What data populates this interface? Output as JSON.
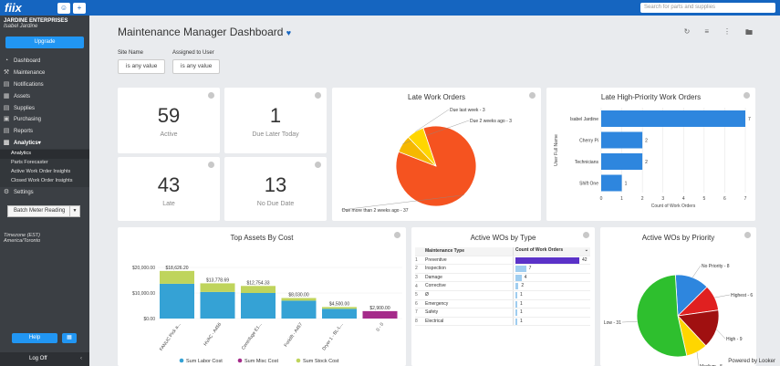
{
  "topbar": {
    "logo": "fiix",
    "search_placeholder": "Search for parts and supplies"
  },
  "sidebar": {
    "org": "JARDINE ENTERPRISES",
    "user": "Isabel Jardine",
    "upgrade": "Upgrade",
    "items": [
      {
        "label": "Dashboard",
        "icon": "dashboard-icon"
      },
      {
        "label": "Maintenance",
        "icon": "wrench-icon"
      },
      {
        "label": "Notifications",
        "icon": "chat-icon"
      },
      {
        "label": "Assets",
        "icon": "assets-icon"
      },
      {
        "label": "Supplies",
        "icon": "supplies-icon"
      },
      {
        "label": "Purchasing",
        "icon": "cart-icon"
      },
      {
        "label": "Reports",
        "icon": "reports-icon"
      },
      {
        "label": "Analytics",
        "icon": "analytics-icon"
      }
    ],
    "sub": [
      "Analytics",
      "Parts Forecaster",
      "Active Work Order Insights",
      "Closed Work Order Insights"
    ],
    "settings": "Settings",
    "batch": "Batch Meter Reading",
    "tz1": "Timezone (EST)",
    "tz2": "America/Toronto",
    "help": "Help",
    "logoff": "Log Off"
  },
  "dashboard": {
    "title": "Maintenance Manager Dashboard",
    "filters": [
      {
        "label": "Site Name",
        "value": "is any value"
      },
      {
        "label": "Assigned to User",
        "value": "is any value"
      }
    ],
    "kpis": [
      {
        "value": "59",
        "label": "Active"
      },
      {
        "value": "1",
        "label": "Due Later Today"
      },
      {
        "value": "43",
        "label": "Late"
      },
      {
        "value": "13",
        "label": "No Due Date"
      }
    ],
    "powered": "Powered by Looker"
  },
  "chart_data": [
    {
      "type": "pie",
      "title": "Late Work Orders",
      "slices": [
        {
          "label": "Due more than 2 weeks ago",
          "value": 37,
          "color": "#f55320"
        },
        {
          "label": "Due 2 weeks ago",
          "value": 3,
          "color": "#f5b800"
        },
        {
          "label": "Due last week",
          "value": 3,
          "color": "#ffd600"
        }
      ]
    },
    {
      "type": "bar",
      "title": "Late High-Priority Work Orders",
      "orientation": "horizontal",
      "categories": [
        "Isabel Jardine",
        "Cherry Pi",
        "Technicians",
        "Shift One"
      ],
      "values": [
        7,
        2,
        2,
        1
      ],
      "xlabel": "Count of Work Orders",
      "ylabel": "User Full Name",
      "xlim": [
        0,
        7
      ],
      "ticks": [
        "0",
        "1",
        "2",
        "3",
        "4",
        "5",
        "6",
        "7"
      ]
    },
    {
      "type": "bar",
      "title": "Top Assets By Cost",
      "stacked": true,
      "categories": [
        "FANUC Pick a...",
        "HVAC - A456",
        "Centrifuge E1...",
        "Forklift - A457",
        "Dryer 1 - BL-L...",
        "0 - 0"
      ],
      "totals": [
        "$18,626.20",
        "$13,778.69",
        "$12,754.33",
        "$8,030.00",
        "$4,500.00",
        "$2,900.00"
      ],
      "series": [
        {
          "name": "Sum Labor Cost",
          "color": "#35a2d5",
          "values": [
            13600,
            10400,
            10000,
            7000,
            3800,
            0
          ]
        },
        {
          "name": "Sum Misc Cost",
          "color": "#a52b8a",
          "values": [
            0,
            0,
            0,
            0,
            0,
            2900
          ]
        },
        {
          "name": "Sum Stock Cost",
          "color": "#bfd45c",
          "values": [
            5026,
            3379,
            2754,
            1030,
            700,
            0
          ]
        }
      ],
      "yticks": [
        "$20,000.00",
        "$10,000.00",
        "$0.00"
      ],
      "ylim": [
        0,
        20000
      ]
    },
    {
      "type": "table",
      "title": "Active WOs by Type",
      "columns": [
        "Maintenance Type",
        "Count of Work Orders"
      ],
      "rows": [
        [
          "Preventive",
          42
        ],
        [
          "Inspection",
          7
        ],
        [
          "Damage",
          4
        ],
        [
          "Corrective",
          2
        ],
        [
          "Ø",
          1
        ],
        [
          "Emergency",
          1
        ],
        [
          "Safety",
          1
        ],
        [
          "Electrical",
          1
        ]
      ]
    },
    {
      "type": "pie",
      "title": "Active WOs by Priority",
      "slices": [
        {
          "label": "No Priority",
          "value": 8,
          "color": "#2e86de"
        },
        {
          "label": "Highest",
          "value": 6,
          "color": "#e02020"
        },
        {
          "label": "High",
          "value": 9,
          "color": "#a01010"
        },
        {
          "label": "Medium",
          "value": 5,
          "color": "#ffd600"
        },
        {
          "label": "Low",
          "value": 31,
          "color": "#2ebf2e"
        }
      ]
    }
  ]
}
